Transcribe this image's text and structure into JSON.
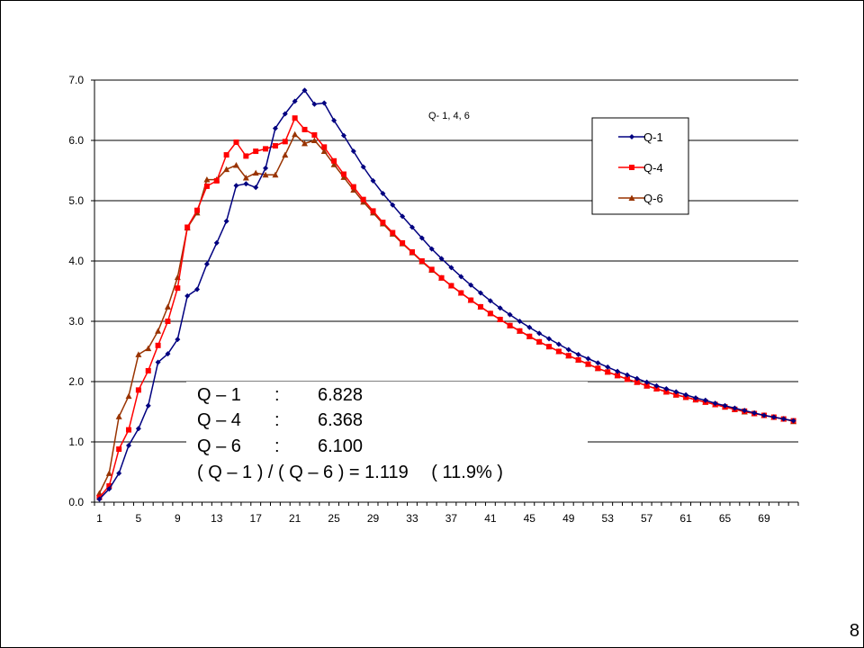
{
  "page_number": "8",
  "colors": {
    "q1": "#000080",
    "q4": "#ff0000",
    "q6": "#993300",
    "grid": "#000000",
    "background": "#ffffff"
  },
  "chart_data": {
    "type": "line",
    "title": "Q- 1, 4, 6",
    "xlabel": "",
    "ylabel": "",
    "ylim": [
      0,
      7
    ],
    "y_ticks": [
      "0.0",
      "1.0",
      "2.0",
      "3.0",
      "4.0",
      "5.0",
      "6.0",
      "7.0"
    ],
    "x_ticks": [
      "1",
      "5",
      "9",
      "13",
      "17",
      "21",
      "25",
      "29",
      "33",
      "37",
      "41",
      "45",
      "49",
      "53",
      "57",
      "61",
      "65",
      "69"
    ],
    "x": [
      1,
      2,
      3,
      4,
      5,
      6,
      7,
      8,
      9,
      10,
      11,
      12,
      13,
      14,
      15,
      16,
      17,
      18,
      19,
      20,
      21,
      22,
      23,
      24,
      25,
      26,
      27,
      28,
      29,
      30,
      31,
      32,
      33,
      34,
      35,
      36,
      37,
      38,
      39,
      40,
      41,
      42,
      43,
      44,
      45,
      46,
      47,
      48,
      49,
      50,
      51,
      52,
      53,
      54,
      55,
      56,
      57,
      58,
      59,
      60,
      61,
      62,
      63,
      64,
      65,
      66,
      67,
      68,
      69,
      70,
      71,
      72
    ],
    "grid": "horizontal",
    "legend_position": "top-right",
    "series": [
      {
        "name": "Q-1",
        "marker": "diamond",
        "color": "#000080",
        "values": [
          0.05,
          0.22,
          0.48,
          0.94,
          1.22,
          1.6,
          2.32,
          2.46,
          2.7,
          3.42,
          3.53,
          3.95,
          4.3,
          4.66,
          5.25,
          5.28,
          5.22,
          5.54,
          6.2,
          6.44,
          6.65,
          6.83,
          6.6,
          6.62,
          6.33,
          6.08,
          5.82,
          5.56,
          5.33,
          5.12,
          4.93,
          4.74,
          4.56,
          4.38,
          4.2,
          4.04,
          3.89,
          3.74,
          3.6,
          3.47,
          3.34,
          3.22,
          3.11,
          3.0,
          2.9,
          2.8,
          2.71,
          2.62,
          2.53,
          2.45,
          2.38,
          2.31,
          2.24,
          2.17,
          2.11,
          2.05,
          1.99,
          1.93,
          1.88,
          1.83,
          1.78,
          1.73,
          1.69,
          1.64,
          1.6,
          1.56,
          1.52,
          1.48,
          1.44,
          1.41,
          1.38,
          1.35
        ]
      },
      {
        "name": "Q-4",
        "marker": "square",
        "color": "#ff0000",
        "values": [
          0.08,
          0.27,
          0.88,
          1.2,
          1.86,
          2.18,
          2.6,
          3.0,
          3.55,
          4.56,
          4.84,
          5.24,
          5.33,
          5.76,
          5.97,
          5.74,
          5.82,
          5.86,
          5.91,
          5.98,
          6.37,
          6.18,
          6.09,
          5.89,
          5.66,
          5.44,
          5.23,
          5.02,
          4.83,
          4.64,
          4.47,
          4.3,
          4.15,
          4.0,
          3.86,
          3.72,
          3.59,
          3.47,
          3.35,
          3.24,
          3.13,
          3.03,
          2.93,
          2.84,
          2.75,
          2.66,
          2.58,
          2.5,
          2.43,
          2.36,
          2.29,
          2.22,
          2.16,
          2.1,
          2.04,
          1.99,
          1.93,
          1.88,
          1.83,
          1.78,
          1.74,
          1.7,
          1.66,
          1.62,
          1.58,
          1.54,
          1.51,
          1.47,
          1.44,
          1.41,
          1.38,
          1.35
        ]
      },
      {
        "name": "Q-6",
        "marker": "triangle",
        "color": "#993300",
        "values": [
          0.15,
          0.48,
          1.42,
          1.76,
          2.45,
          2.55,
          2.84,
          3.24,
          3.73,
          4.55,
          4.8,
          5.35,
          5.35,
          5.52,
          5.59,
          5.38,
          5.46,
          5.43,
          5.43,
          5.76,
          6.1,
          5.95,
          6.0,
          5.82,
          5.6,
          5.39,
          5.18,
          4.98,
          4.8,
          4.62,
          4.45,
          4.29,
          4.14,
          3.99,
          3.85,
          3.72,
          3.59,
          3.47,
          3.35,
          3.24,
          3.13,
          3.03,
          2.93,
          2.84,
          2.75,
          2.66,
          2.58,
          2.5,
          2.43,
          2.36,
          2.29,
          2.22,
          2.16,
          2.1,
          2.04,
          1.99,
          1.93,
          1.88,
          1.83,
          1.78,
          1.74,
          1.7,
          1.66,
          1.62,
          1.58,
          1.54,
          1.5,
          1.47,
          1.44,
          1.41,
          1.38,
          1.34
        ]
      }
    ],
    "annotations": {
      "rows": [
        {
          "label": "Q – 1",
          "colon": ":",
          "value": "6.828"
        },
        {
          "label": "Q – 4",
          "colon": ":",
          "value": "6.368"
        },
        {
          "label": "Q – 6",
          "colon": ":",
          "value": "6.100"
        }
      ],
      "ratio": "( Q – 1 ) / ( Q – 6 ) = 1.119 　( 11.9% )"
    }
  }
}
